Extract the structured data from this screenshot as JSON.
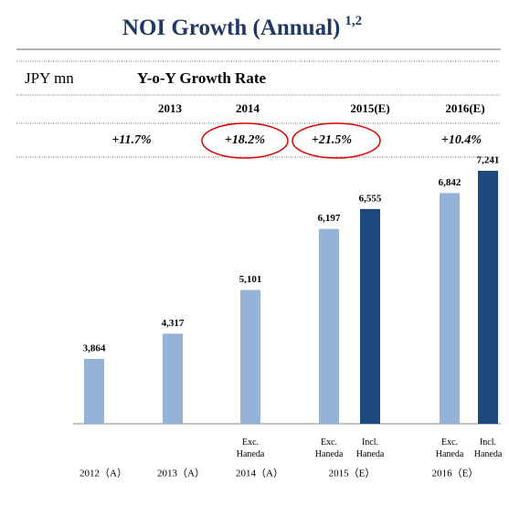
{
  "header": {
    "title": "NOI Growth (Annual)",
    "superscript": "1,2"
  },
  "table": {
    "unit": "JPY mn",
    "heading": "Y-o-Y Growth Rate",
    "years": [
      "2013",
      "2014",
      "2015(E)",
      "2016(E)"
    ],
    "rates": [
      "+11.7%",
      "+18.2%",
      "+21.5%",
      "+10.4%"
    ]
  },
  "chart_data": {
    "type": "bar",
    "categories": [
      "2012（A）",
      "2013（A）",
      "2014（A）",
      "2015（E）",
      "2016（E）"
    ],
    "series": [
      {
        "name": "Exc. Haneda",
        "color": "#95b3d7",
        "values": [
          3864,
          4317,
          5101,
          6197,
          6842
        ],
        "value_labels": [
          "3,864",
          "4,317",
          "5,101",
          "6,197",
          "6,842"
        ],
        "labels": [
          null,
          null,
          "Exc. Haneda",
          "Exc. Haneda",
          "Exc. Haneda"
        ]
      },
      {
        "name": "Incl. Haneda",
        "color": "#1f497d",
        "values": [
          null,
          null,
          null,
          6555,
          7241
        ],
        "value_labels": [
          null,
          null,
          null,
          "6,555",
          "7,241"
        ],
        "labels": [
          null,
          null,
          null,
          "Incl. Haneda",
          "Incl. Haneda"
        ]
      }
    ],
    "ylim": [
      2700,
      7700
    ]
  }
}
